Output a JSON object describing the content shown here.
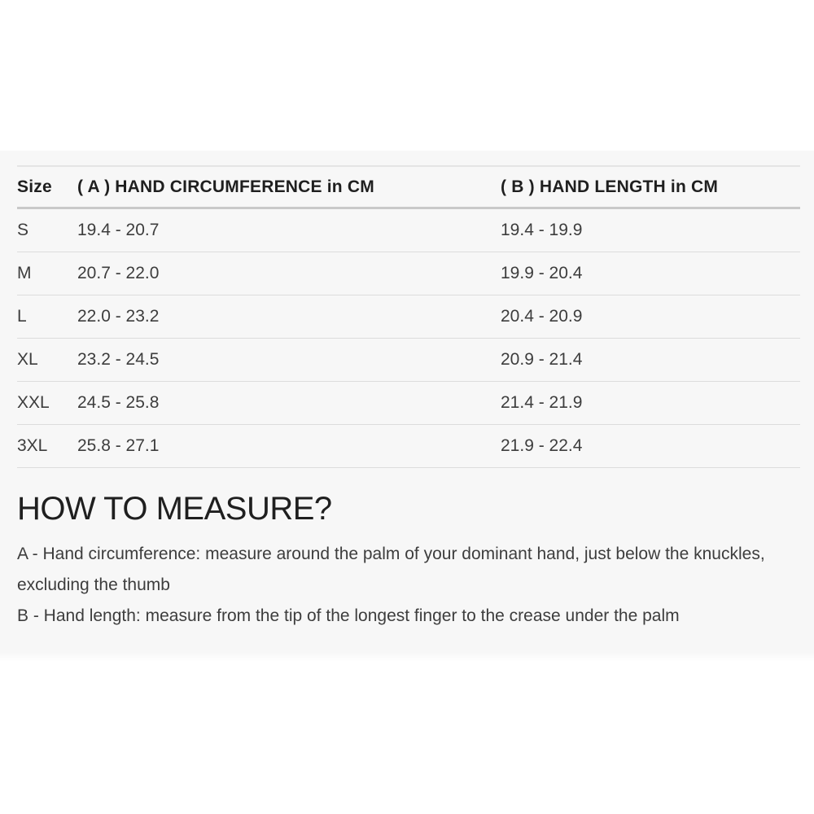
{
  "colors": {
    "panel_bg": "#f7f7f7",
    "text_dark": "#1f1f1f",
    "text_body": "#3d3d3d",
    "line_top": "#e4e4e4",
    "line_header": "#c9c9c9",
    "line_row": "#dcdcdc"
  },
  "size_chart": {
    "columns": {
      "size": "Size",
      "circumference": "( A ) HAND CIRCUMFERENCE in CM",
      "length": "( B ) HAND LENGTH in CM"
    },
    "rows": [
      {
        "size": "S",
        "circumference": "19.4 - 20.7",
        "length": "19.4 - 19.9"
      },
      {
        "size": "M",
        "circumference": "20.7 - 22.0",
        "length": "19.9 - 20.4"
      },
      {
        "size": "L",
        "circumference": "22.0 - 23.2",
        "length": "20.4 - 20.9"
      },
      {
        "size": "XL",
        "circumference": "23.2 - 24.5",
        "length": "20.9 - 21.4"
      },
      {
        "size": "XXL",
        "circumference": "24.5 - 25.8",
        "length": "21.4 - 21.9"
      },
      {
        "size": "3XL",
        "circumference": "25.8 - 27.1",
        "length": "21.9 - 22.4"
      }
    ]
  },
  "how_to_measure": {
    "heading": "HOW TO MEASURE?",
    "instructions": [
      "A - Hand circumference: measure around the palm of your dominant hand, just below the knuckles, excluding the thumb",
      "B - Hand length: measure from the tip of the longest finger to the crease under the palm"
    ]
  }
}
